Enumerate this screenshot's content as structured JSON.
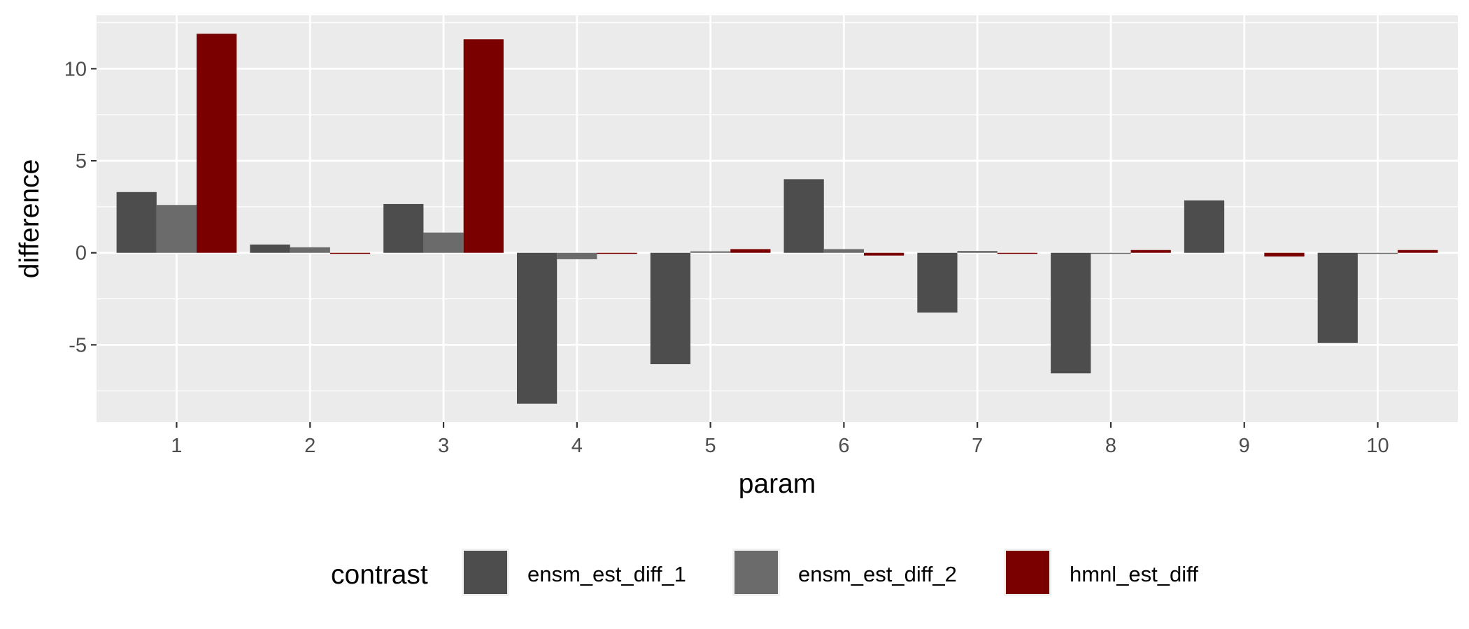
{
  "chart_data": {
    "type": "bar",
    "title": "",
    "xlabel": "param",
    "ylabel": "difference",
    "categories": [
      "1",
      "2",
      "3",
      "4",
      "5",
      "6",
      "7",
      "8",
      "9",
      "10"
    ],
    "series": [
      {
        "name": "ensm_est_diff_1",
        "color": "#4d4d4d",
        "values": [
          3.3,
          0.45,
          2.65,
          -8.2,
          -6.05,
          4.0,
          -3.25,
          -6.55,
          2.85,
          -4.9
        ]
      },
      {
        "name": "ensm_est_diff_2",
        "color": "#6b6b6b",
        "values": [
          2.6,
          0.3,
          1.1,
          -0.35,
          0.08,
          0.2,
          0.1,
          -0.05,
          0.0,
          -0.05
        ]
      },
      {
        "name": "hmnl_est_diff",
        "color": "#7a0000",
        "values": [
          11.9,
          -0.05,
          11.6,
          -0.05,
          0.2,
          -0.15,
          -0.05,
          0.15,
          -0.2,
          0.15
        ]
      }
    ],
    "ylim": [
      -9.2,
      12.9
    ],
    "yticks": [
      -5,
      0,
      5,
      10
    ],
    "grid": true,
    "legend": {
      "title": "contrast",
      "placement": "bottom"
    }
  }
}
